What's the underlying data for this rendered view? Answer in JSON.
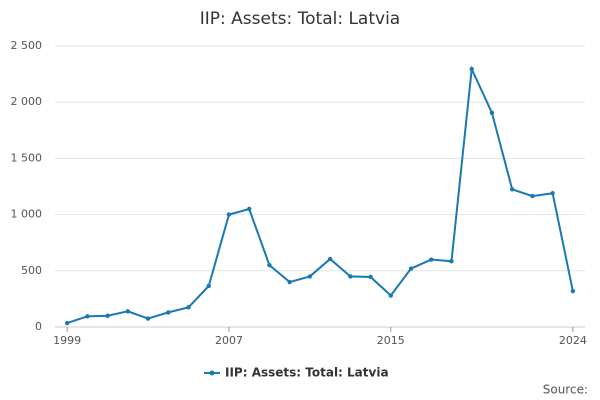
{
  "chart_data": {
    "type": "line",
    "title": "IIP: Assets: Total: Latvia",
    "source": "Source:",
    "x": [
      1999,
      2000,
      2001,
      2002,
      2003,
      2004,
      2005,
      2006,
      2007,
      2008,
      2009,
      2010,
      2011,
      2012,
      2013,
      2014,
      2015,
      2016,
      2017,
      2018,
      2019,
      2020,
      2021,
      2022,
      2023,
      2024
    ],
    "series": [
      {
        "name": "IIP: Assets: Total: Latvia",
        "color": "#1a78b4",
        "values": [
          35,
          95,
          100,
          140,
          75,
          130,
          175,
          365,
          1000,
          1050,
          550,
          400,
          450,
          605,
          450,
          445,
          280,
          520,
          600,
          585,
          2295,
          1905,
          1225,
          1165,
          1190,
          320
        ]
      }
    ],
    "xlim": [
      1998.4,
      2024.6
    ],
    "xticks": [
      1999,
      2007,
      2015,
      2024
    ],
    "ylim": [
      0,
      2500
    ],
    "yticks": [
      0,
      500,
      {
        "value": 1000,
        "label": "1 000"
      },
      {
        "value": 1500,
        "label": "1 500"
      },
      {
        "value": 2000,
        "label": "2 000"
      },
      {
        "value": 2500,
        "label": "2 500"
      }
    ],
    "grid": true
  }
}
